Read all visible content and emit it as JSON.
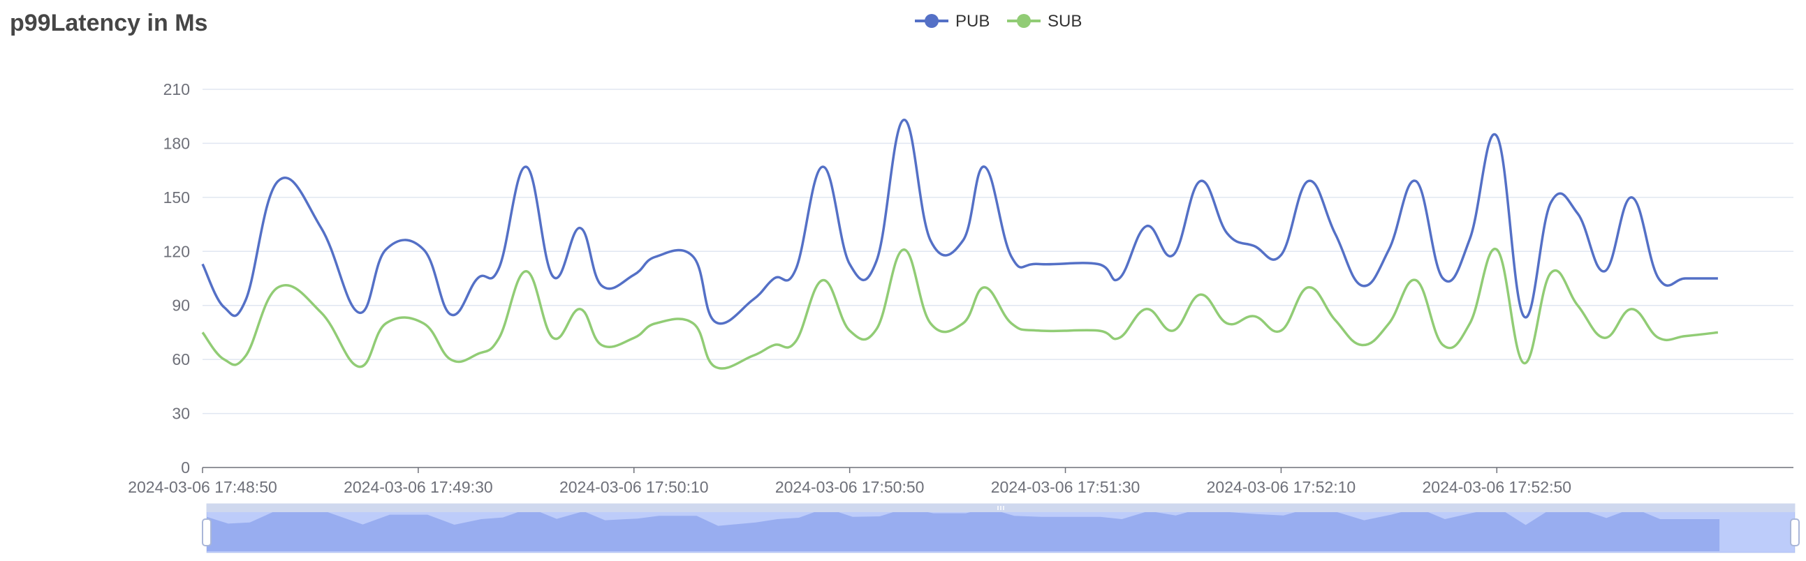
{
  "title": "p99Latency in Ms",
  "chart_data": {
    "type": "line",
    "title": "p99Latency in Ms",
    "xlabel": "",
    "ylabel": "",
    "ylim": [
      0,
      210
    ],
    "yticks": [
      0,
      30,
      60,
      90,
      120,
      150,
      180,
      210
    ],
    "xticks": [
      "2024-03-06 17:48:50",
      "2024-03-06 17:49:30",
      "2024-03-06 17:50:10",
      "2024-03-06 17:50:50",
      "2024-03-06 17:51:30",
      "2024-03-06 17:52:10",
      "2024-03-06 17:52:50"
    ],
    "x_start": "2024-03-06 17:48:50",
    "x_end": "2024-03-06 17:53:45",
    "grid": true,
    "legend": "top-center",
    "series": [
      {
        "name": "PUB",
        "color": "#5470c6",
        "points": [
          [
            "2024-03-06 17:48:50",
            113
          ],
          [
            "2024-03-06 17:48:54",
            89
          ],
          [
            "2024-03-06 17:48:58",
            93
          ],
          [
            "2024-03-06 17:49:04",
            159
          ],
          [
            "2024-03-06 17:49:12",
            133
          ],
          [
            "2024-03-06 17:49:19",
            86
          ],
          [
            "2024-03-06 17:49:24",
            121
          ],
          [
            "2024-03-06 17:49:31",
            121
          ],
          [
            "2024-03-06 17:49:36",
            85
          ],
          [
            "2024-03-06 17:49:41",
            105
          ],
          [
            "2024-03-06 17:49:45",
            111
          ],
          [
            "2024-03-06 17:49:50",
            167
          ],
          [
            "2024-03-06 17:49:55",
            106
          ],
          [
            "2024-03-06 17:49:60",
            133
          ],
          [
            "2024-03-06 17:50:04",
            101
          ],
          [
            "2024-03-06 17:50:10",
            107
          ],
          [
            "2024-03-06 17:50:14",
            117
          ],
          [
            "2024-03-06 17:50:21",
            117
          ],
          [
            "2024-03-06 17:50:25",
            81
          ],
          [
            "2024-03-06 17:50:32",
            93
          ],
          [
            "2024-03-06 17:50:36",
            105
          ],
          [
            "2024-03-06 17:50:40",
            110
          ],
          [
            "2024-03-06 17:50:45",
            167
          ],
          [
            "2024-03-06 17:50:50",
            113
          ],
          [
            "2024-03-06 17:50:55",
            115
          ],
          [
            "2024-03-06 17:51:00",
            193
          ],
          [
            "2024-03-06 17:51:05",
            126
          ],
          [
            "2024-03-06 17:51:11",
            126
          ],
          [
            "2024-03-06 17:51:15",
            167
          ],
          [
            "2024-03-06 17:51:20",
            117
          ],
          [
            "2024-03-06 17:51:25",
            113
          ],
          [
            "2024-03-06 17:51:36",
            113
          ],
          [
            "2024-03-06 17:51:40",
            105
          ],
          [
            "2024-03-06 17:51:45",
            134
          ],
          [
            "2024-03-06 17:51:50",
            118
          ],
          [
            "2024-03-06 17:51:55",
            159
          ],
          [
            "2024-03-06 17:52:00",
            130
          ],
          [
            "2024-03-06 17:52:05",
            123
          ],
          [
            "2024-03-06 17:52:10",
            118
          ],
          [
            "2024-03-06 17:52:15",
            159
          ],
          [
            "2024-03-06 17:52:20",
            130
          ],
          [
            "2024-03-06 17:52:25",
            101
          ],
          [
            "2024-03-06 17:52:30",
            121
          ],
          [
            "2024-03-06 17:52:35",
            159
          ],
          [
            "2024-03-06 17:52:40",
            105
          ],
          [
            "2024-03-06 17:52:45",
            127
          ],
          [
            "2024-03-06 17:52:50",
            184
          ],
          [
            "2024-03-06 17:52:55",
            84
          ],
          [
            "2024-03-06 17:53:00",
            147
          ],
          [
            "2024-03-06 17:53:05",
            141
          ],
          [
            "2024-03-06 17:53:10",
            109
          ],
          [
            "2024-03-06 17:53:15",
            150
          ],
          [
            "2024-03-06 17:53:20",
            105
          ],
          [
            "2024-03-06 17:53:25",
            105
          ],
          [
            "2024-03-06 17:53:31",
            105
          ]
        ]
      },
      {
        "name": "SUB",
        "color": "#91cc75",
        "points": [
          [
            "2024-03-06 17:48:50",
            75
          ],
          [
            "2024-03-06 17:48:54",
            60
          ],
          [
            "2024-03-06 17:48:58",
            62
          ],
          [
            "2024-03-06 17:49:04",
            100
          ],
          [
            "2024-03-06 17:49:12",
            86
          ],
          [
            "2024-03-06 17:49:19",
            56
          ],
          [
            "2024-03-06 17:49:24",
            80
          ],
          [
            "2024-03-06 17:49:31",
            80
          ],
          [
            "2024-03-06 17:49:36",
            60
          ],
          [
            "2024-03-06 17:49:41",
            63
          ],
          [
            "2024-03-06 17:49:45",
            72
          ],
          [
            "2024-03-06 17:49:50",
            109
          ],
          [
            "2024-03-06 17:49:55",
            72
          ],
          [
            "2024-03-06 17:49:60",
            88
          ],
          [
            "2024-03-06 17:50:04",
            68
          ],
          [
            "2024-03-06 17:50:10",
            72
          ],
          [
            "2024-03-06 17:50:14",
            80
          ],
          [
            "2024-03-06 17:50:21",
            80
          ],
          [
            "2024-03-06 17:50:25",
            56
          ],
          [
            "2024-03-06 17:50:32",
            62
          ],
          [
            "2024-03-06 17:50:36",
            68
          ],
          [
            "2024-03-06 17:50:40",
            70
          ],
          [
            "2024-03-06 17:50:45",
            104
          ],
          [
            "2024-03-06 17:50:50",
            76
          ],
          [
            "2024-03-06 17:50:55",
            77
          ],
          [
            "2024-03-06 17:51:00",
            121
          ],
          [
            "2024-03-06 17:51:05",
            80
          ],
          [
            "2024-03-06 17:51:11",
            80
          ],
          [
            "2024-03-06 17:51:15",
            100
          ],
          [
            "2024-03-06 17:51:20",
            80
          ],
          [
            "2024-03-06 17:51:25",
            76
          ],
          [
            "2024-03-06 17:51:36",
            76
          ],
          [
            "2024-03-06 17:51:40",
            72
          ],
          [
            "2024-03-06 17:51:45",
            88
          ],
          [
            "2024-03-06 17:51:50",
            76
          ],
          [
            "2024-03-06 17:51:55",
            96
          ],
          [
            "2024-03-06 17:52:00",
            80
          ],
          [
            "2024-03-06 17:52:05",
            84
          ],
          [
            "2024-03-06 17:52:10",
            76
          ],
          [
            "2024-03-06 17:52:15",
            100
          ],
          [
            "2024-03-06 17:52:20",
            82
          ],
          [
            "2024-03-06 17:52:25",
            68
          ],
          [
            "2024-03-06 17:52:30",
            80
          ],
          [
            "2024-03-06 17:52:35",
            104
          ],
          [
            "2024-03-06 17:52:40",
            68
          ],
          [
            "2024-03-06 17:52:45",
            80
          ],
          [
            "2024-03-06 17:52:50",
            121
          ],
          [
            "2024-03-06 17:52:55",
            58
          ],
          [
            "2024-03-06 17:53:00",
            108
          ],
          [
            "2024-03-06 17:53:05",
            90
          ],
          [
            "2024-03-06 17:53:10",
            72
          ],
          [
            "2024-03-06 17:53:15",
            88
          ],
          [
            "2024-03-06 17:53:20",
            72
          ],
          [
            "2024-03-06 17:53:25",
            73
          ],
          [
            "2024-03-06 17:53:31",
            75
          ]
        ]
      }
    ],
    "data_zoom": {
      "start": 0,
      "end": 1
    }
  }
}
